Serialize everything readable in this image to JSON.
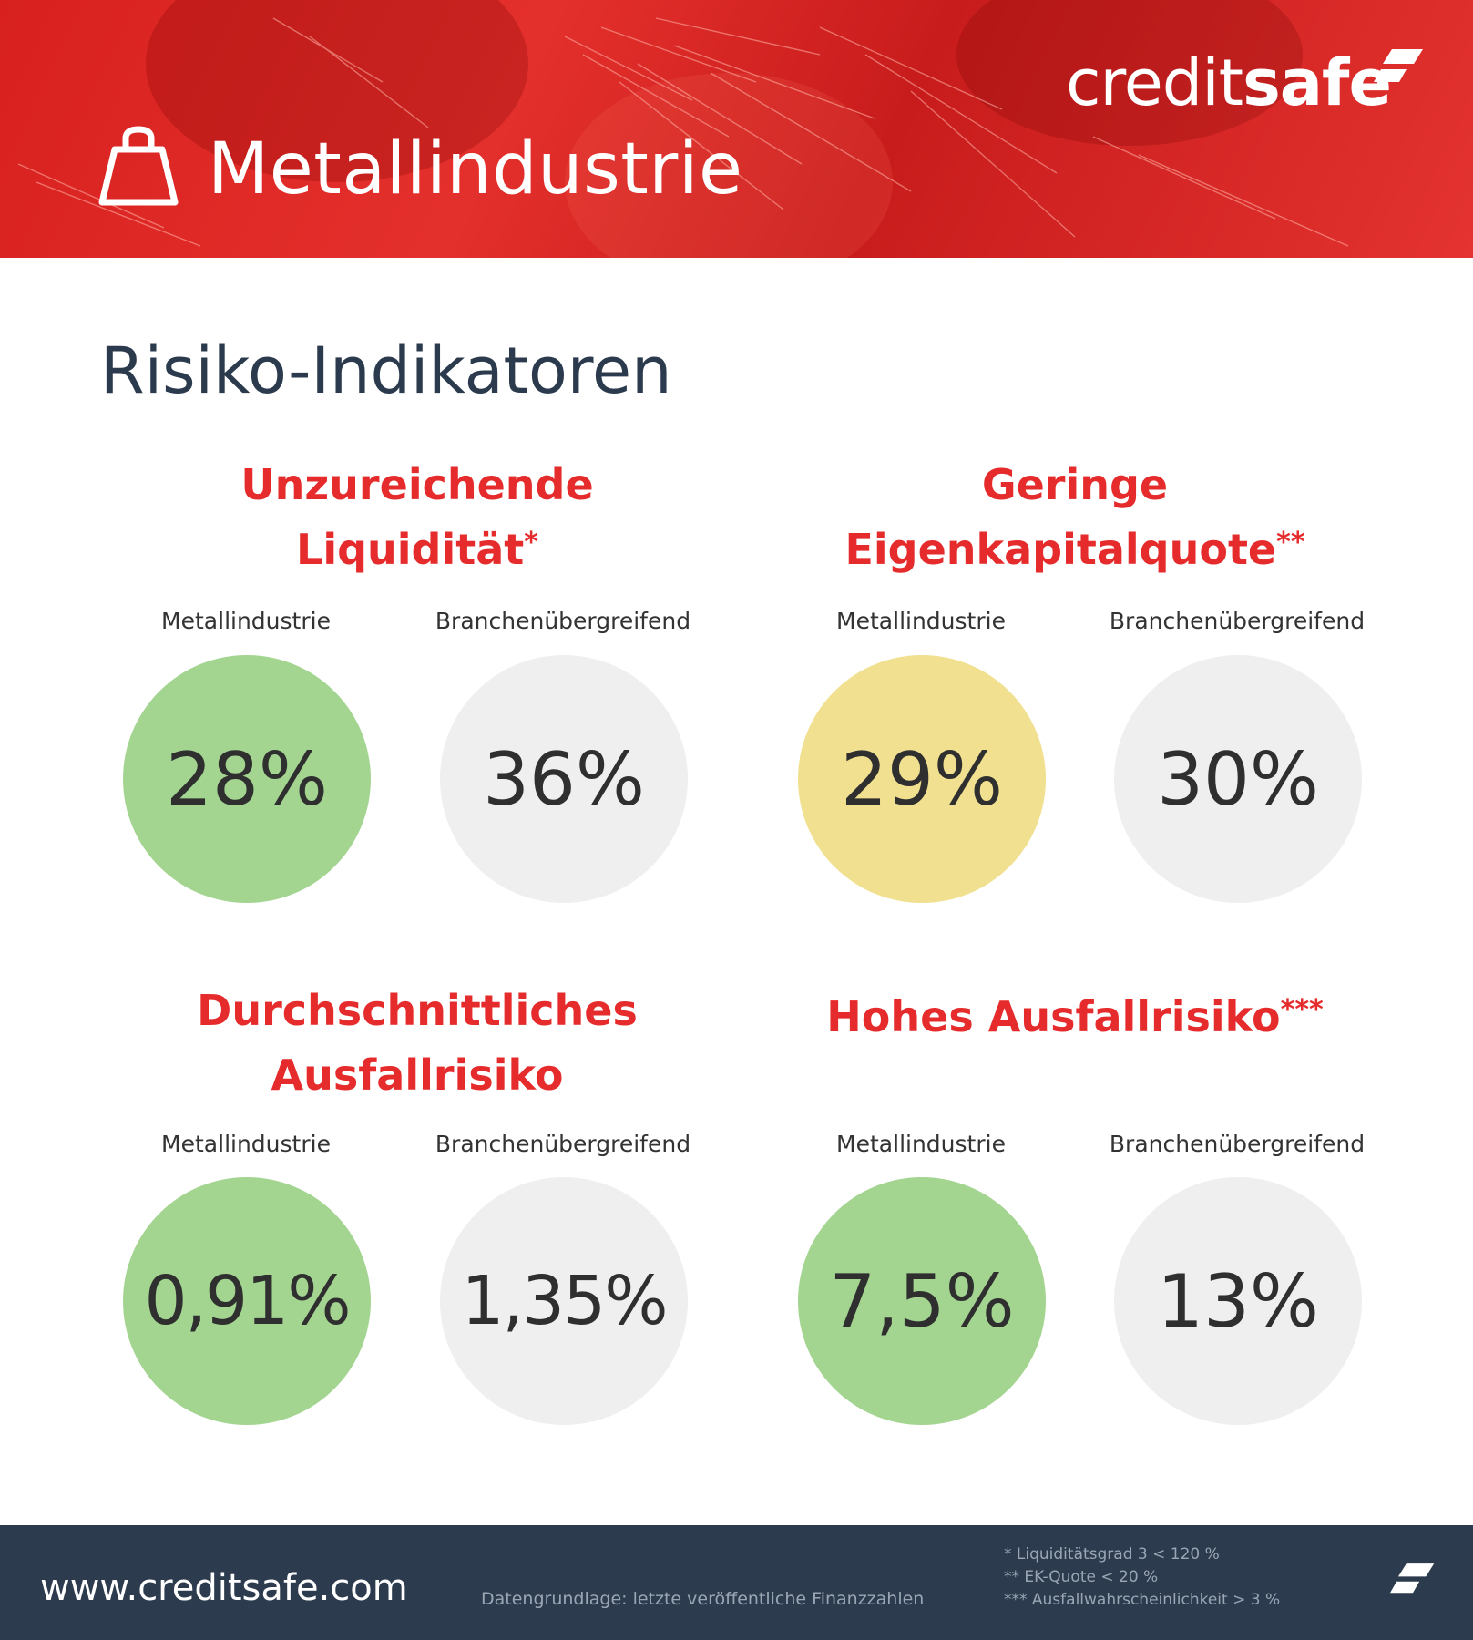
{
  "colors": {
    "brand_red": "#e52b2b",
    "dark_navy": "#2c3b4e",
    "good_green": "#a3d591",
    "medium_yellow": "#f0e08f",
    "neutral_grey": "#efefef"
  },
  "header": {
    "icon": "weight-icon",
    "title": "Metallindustrie",
    "logo": {
      "prefix": "credit",
      "suffix": "safe"
    }
  },
  "section_title": "Risiko-Indikatoren",
  "indicators": [
    {
      "title_lines": [
        "Unzureichende",
        "Liquidität"
      ],
      "asterisks": "*",
      "metall_label": "Metallindustrie",
      "branche_label": "Branchenübergreifend",
      "metall_value": "28%",
      "branche_value": "36%",
      "metall_status": "green"
    },
    {
      "title_lines": [
        "Geringe",
        "Eigenkapitalquote"
      ],
      "asterisks": "**",
      "metall_label": "Metallindustrie",
      "branche_label": "Branchenübergreifend",
      "metall_value": "29%",
      "branche_value": "30%",
      "metall_status": "yellow"
    },
    {
      "title_lines": [
        "Durchschnittliches",
        "Ausfallrisiko"
      ],
      "asterisks": "",
      "metall_label": "Metallindustrie",
      "branche_label": "Branchenübergreifend",
      "metall_value": "0,91%",
      "branche_value": "1,35%",
      "metall_status": "green"
    },
    {
      "title_lines": [
        "Hohes Ausfallrisiko"
      ],
      "asterisks": "***",
      "metall_label": "Metallindustrie",
      "branche_label": "Branchenübergreifend",
      "metall_value": "7,5%",
      "branche_value": "13%",
      "metall_status": "green"
    }
  ],
  "footer": {
    "url": "www.creditsafe.com",
    "source": "Datengrundlage: letzte veröffentliche Finanzzahlen",
    "footnotes": [
      "* Liquiditätsgrad 3 < 120 %",
      "** EK-Quote < 20 %",
      "*** Ausfallwahrscheinlichkeit > 3 %"
    ]
  }
}
